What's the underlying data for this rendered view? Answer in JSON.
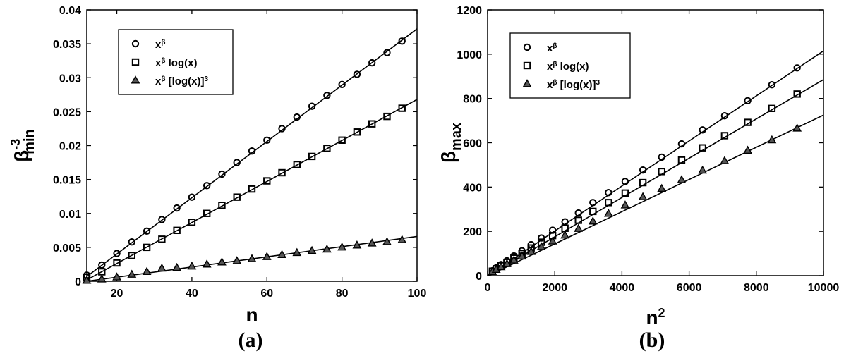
{
  "chart_data": [
    {
      "type": "scatter",
      "panel_label": "(a)",
      "xlabel": "n",
      "ylabel": {
        "base": "β",
        "sup": "-3",
        "sub": "min"
      },
      "xlim": [
        12,
        100
      ],
      "ylim": [
        0,
        0.04
      ],
      "xticks": [
        "20",
        "40",
        "60",
        "80",
        "100"
      ],
      "xtick_values": [
        20,
        40,
        60,
        80,
        100
      ],
      "yticks": [
        "0",
        "0.005",
        "0.01",
        "0.015",
        "0.02",
        "0.025",
        "0.03",
        "0.035",
        "0.04"
      ],
      "ytick_values": [
        0,
        0.005,
        0.01,
        0.015,
        0.02,
        0.025,
        0.03,
        0.035,
        0.04
      ],
      "grid": false,
      "legend_position": "top-left",
      "series": [
        {
          "name": "x^β",
          "legend": {
            "base": "x",
            "sup": "β",
            "rest": ""
          },
          "marker": "circle",
          "x": [
            12,
            16,
            20,
            24,
            28,
            32,
            36,
            40,
            44,
            48,
            52,
            56,
            60,
            64,
            68,
            72,
            76,
            80,
            84,
            88,
            92,
            96
          ],
          "y": [
            0.0009,
            0.0024,
            0.0041,
            0.0058,
            0.0074,
            0.0091,
            0.0108,
            0.0124,
            0.0141,
            0.0158,
            0.0175,
            0.0192,
            0.0208,
            0.0225,
            0.0242,
            0.0258,
            0.0274,
            0.029,
            0.0305,
            0.0322,
            0.0337,
            0.0354
          ],
          "fit": {
            "x": [
              12,
              100
            ],
            "y": [
              0.0007,
              0.0372
            ]
          }
        },
        {
          "name": "x^β log(x)",
          "legend": {
            "base": "x",
            "sup": "β",
            "rest": " log(x)"
          },
          "marker": "square",
          "x": [
            12,
            16,
            20,
            24,
            28,
            32,
            36,
            40,
            44,
            48,
            52,
            56,
            60,
            64,
            68,
            72,
            76,
            80,
            84,
            88,
            92,
            96
          ],
          "y": [
            0.0006,
            0.0014,
            0.0027,
            0.0038,
            0.005,
            0.0062,
            0.0075,
            0.0087,
            0.01,
            0.0112,
            0.0124,
            0.0136,
            0.0148,
            0.016,
            0.0172,
            0.0184,
            0.0196,
            0.0208,
            0.022,
            0.0232,
            0.0243,
            0.0255
          ],
          "fit": {
            "x": [
              12,
              100
            ],
            "y": [
              0.0002,
              0.0268
            ]
          }
        },
        {
          "name": "x^β [log(x)]^3",
          "legend": {
            "base": "x",
            "sup": "β",
            "rest": " [log(x)]",
            "rest_sup": "3"
          },
          "marker": "triangle",
          "x": [
            12,
            16,
            20,
            24,
            28,
            32,
            36,
            40,
            44,
            48,
            52,
            56,
            60,
            64,
            68,
            72,
            76,
            80,
            84,
            88,
            92,
            96
          ],
          "y": [
            0.0001,
            0.0003,
            0.0006,
            0.001,
            0.0014,
            0.0019,
            0.002,
            0.0022,
            0.0025,
            0.0028,
            0.003,
            0.0033,
            0.0036,
            0.0039,
            0.0042,
            0.0045,
            0.0047,
            0.005,
            0.0053,
            0.0056,
            0.0058,
            0.0061
          ],
          "fit": {
            "x": [
              12,
              100
            ],
            "y": [
              0.0,
              0.0066
            ]
          }
        }
      ]
    },
    {
      "type": "scatter",
      "panel_label": "(b)",
      "xlabel": {
        "base": "n",
        "sup": "2"
      },
      "ylabel": {
        "base": "β",
        "sub": "max"
      },
      "xlim": [
        0,
        10000
      ],
      "ylim": [
        0,
        1200
      ],
      "xticks": [
        "0",
        "2000",
        "4000",
        "6000",
        "8000",
        "10000"
      ],
      "xtick_values": [
        0,
        2000,
        4000,
        6000,
        8000,
        10000
      ],
      "yticks": [
        "0",
        "200",
        "400",
        "600",
        "800",
        "1000",
        "1200"
      ],
      "ytick_values": [
        0,
        200,
        400,
        600,
        800,
        1000,
        1200
      ],
      "grid": false,
      "legend_position": "top-left",
      "series": [
        {
          "name": "x^β",
          "legend": {
            "base": "x",
            "sup": "β",
            "rest": ""
          },
          "marker": "circle",
          "x": [
            144,
            256,
            400,
            576,
            784,
            1024,
            1296,
            1600,
            1936,
            2304,
            2704,
            3136,
            3600,
            4096,
            4624,
            5184,
            5776,
            6400,
            7056,
            7744,
            8464,
            9216
          ],
          "y": [
            22,
            35,
            50,
            67,
            89,
            112,
            140,
            170,
            205,
            243,
            283,
            330,
            375,
            425,
            477,
            535,
            595,
            658,
            722,
            790,
            862,
            938
          ],
          "fit": {
            "x": [
              0,
              10000
            ],
            "y": [
              -2,
              1015
            ]
          }
        },
        {
          "name": "x^β log(x)",
          "legend": {
            "base": "x",
            "sup": "β",
            "rest": " log(x)"
          },
          "marker": "square",
          "x": [
            144,
            256,
            400,
            576,
            784,
            1024,
            1296,
            1600,
            1936,
            2304,
            2704,
            3136,
            3600,
            4096,
            4624,
            5184,
            5776,
            6400,
            7056,
            7744,
            8464,
            9216
          ],
          "y": [
            20,
            31,
            45,
            60,
            79,
            100,
            125,
            151,
            181,
            214,
            250,
            290,
            330,
            373,
            420,
            470,
            522,
            577,
            632,
            692,
            755,
            820
          ],
          "fit": {
            "x": [
              0,
              10000
            ],
            "y": [
              -2,
              885
            ]
          }
        },
        {
          "name": "x^β [log(x)]^3",
          "legend": {
            "base": "x",
            "sup": "β",
            "rest": " [log(x)]",
            "rest_sup": "3"
          },
          "marker": "triangle",
          "x": [
            144,
            256,
            400,
            576,
            784,
            1024,
            1296,
            1600,
            1936,
            2304,
            2704,
            3136,
            3600,
            4096,
            4624,
            5184,
            5776,
            6400,
            7056,
            7744,
            8464,
            9216
          ],
          "y": [
            18,
            27,
            39,
            53,
            69,
            87,
            108,
            130,
            155,
            182,
            212,
            245,
            280,
            318,
            355,
            393,
            432,
            475,
            518,
            565,
            612,
            665
          ],
          "fit": {
            "x": [
              0,
              10000
            ],
            "y": [
              -2,
              725
            ]
          }
        }
      ]
    }
  ]
}
